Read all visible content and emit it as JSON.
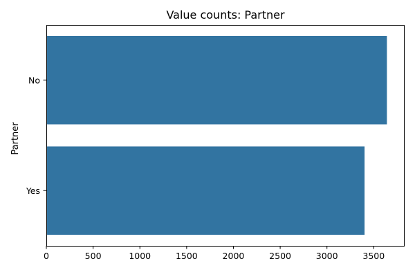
{
  "chart_data": {
    "type": "bar",
    "orientation": "horizontal",
    "title": "Value counts: Partner",
    "ylabel": "Partner",
    "xlabel": "",
    "categories": [
      "No",
      "Yes"
    ],
    "values": [
      3641,
      3402
    ],
    "xlim": [
      0,
      3823
    ],
    "xticks": [
      0,
      500,
      1000,
      1500,
      2000,
      2500,
      3000,
      3500
    ],
    "bar_color": "#3274a1",
    "grid": false
  }
}
